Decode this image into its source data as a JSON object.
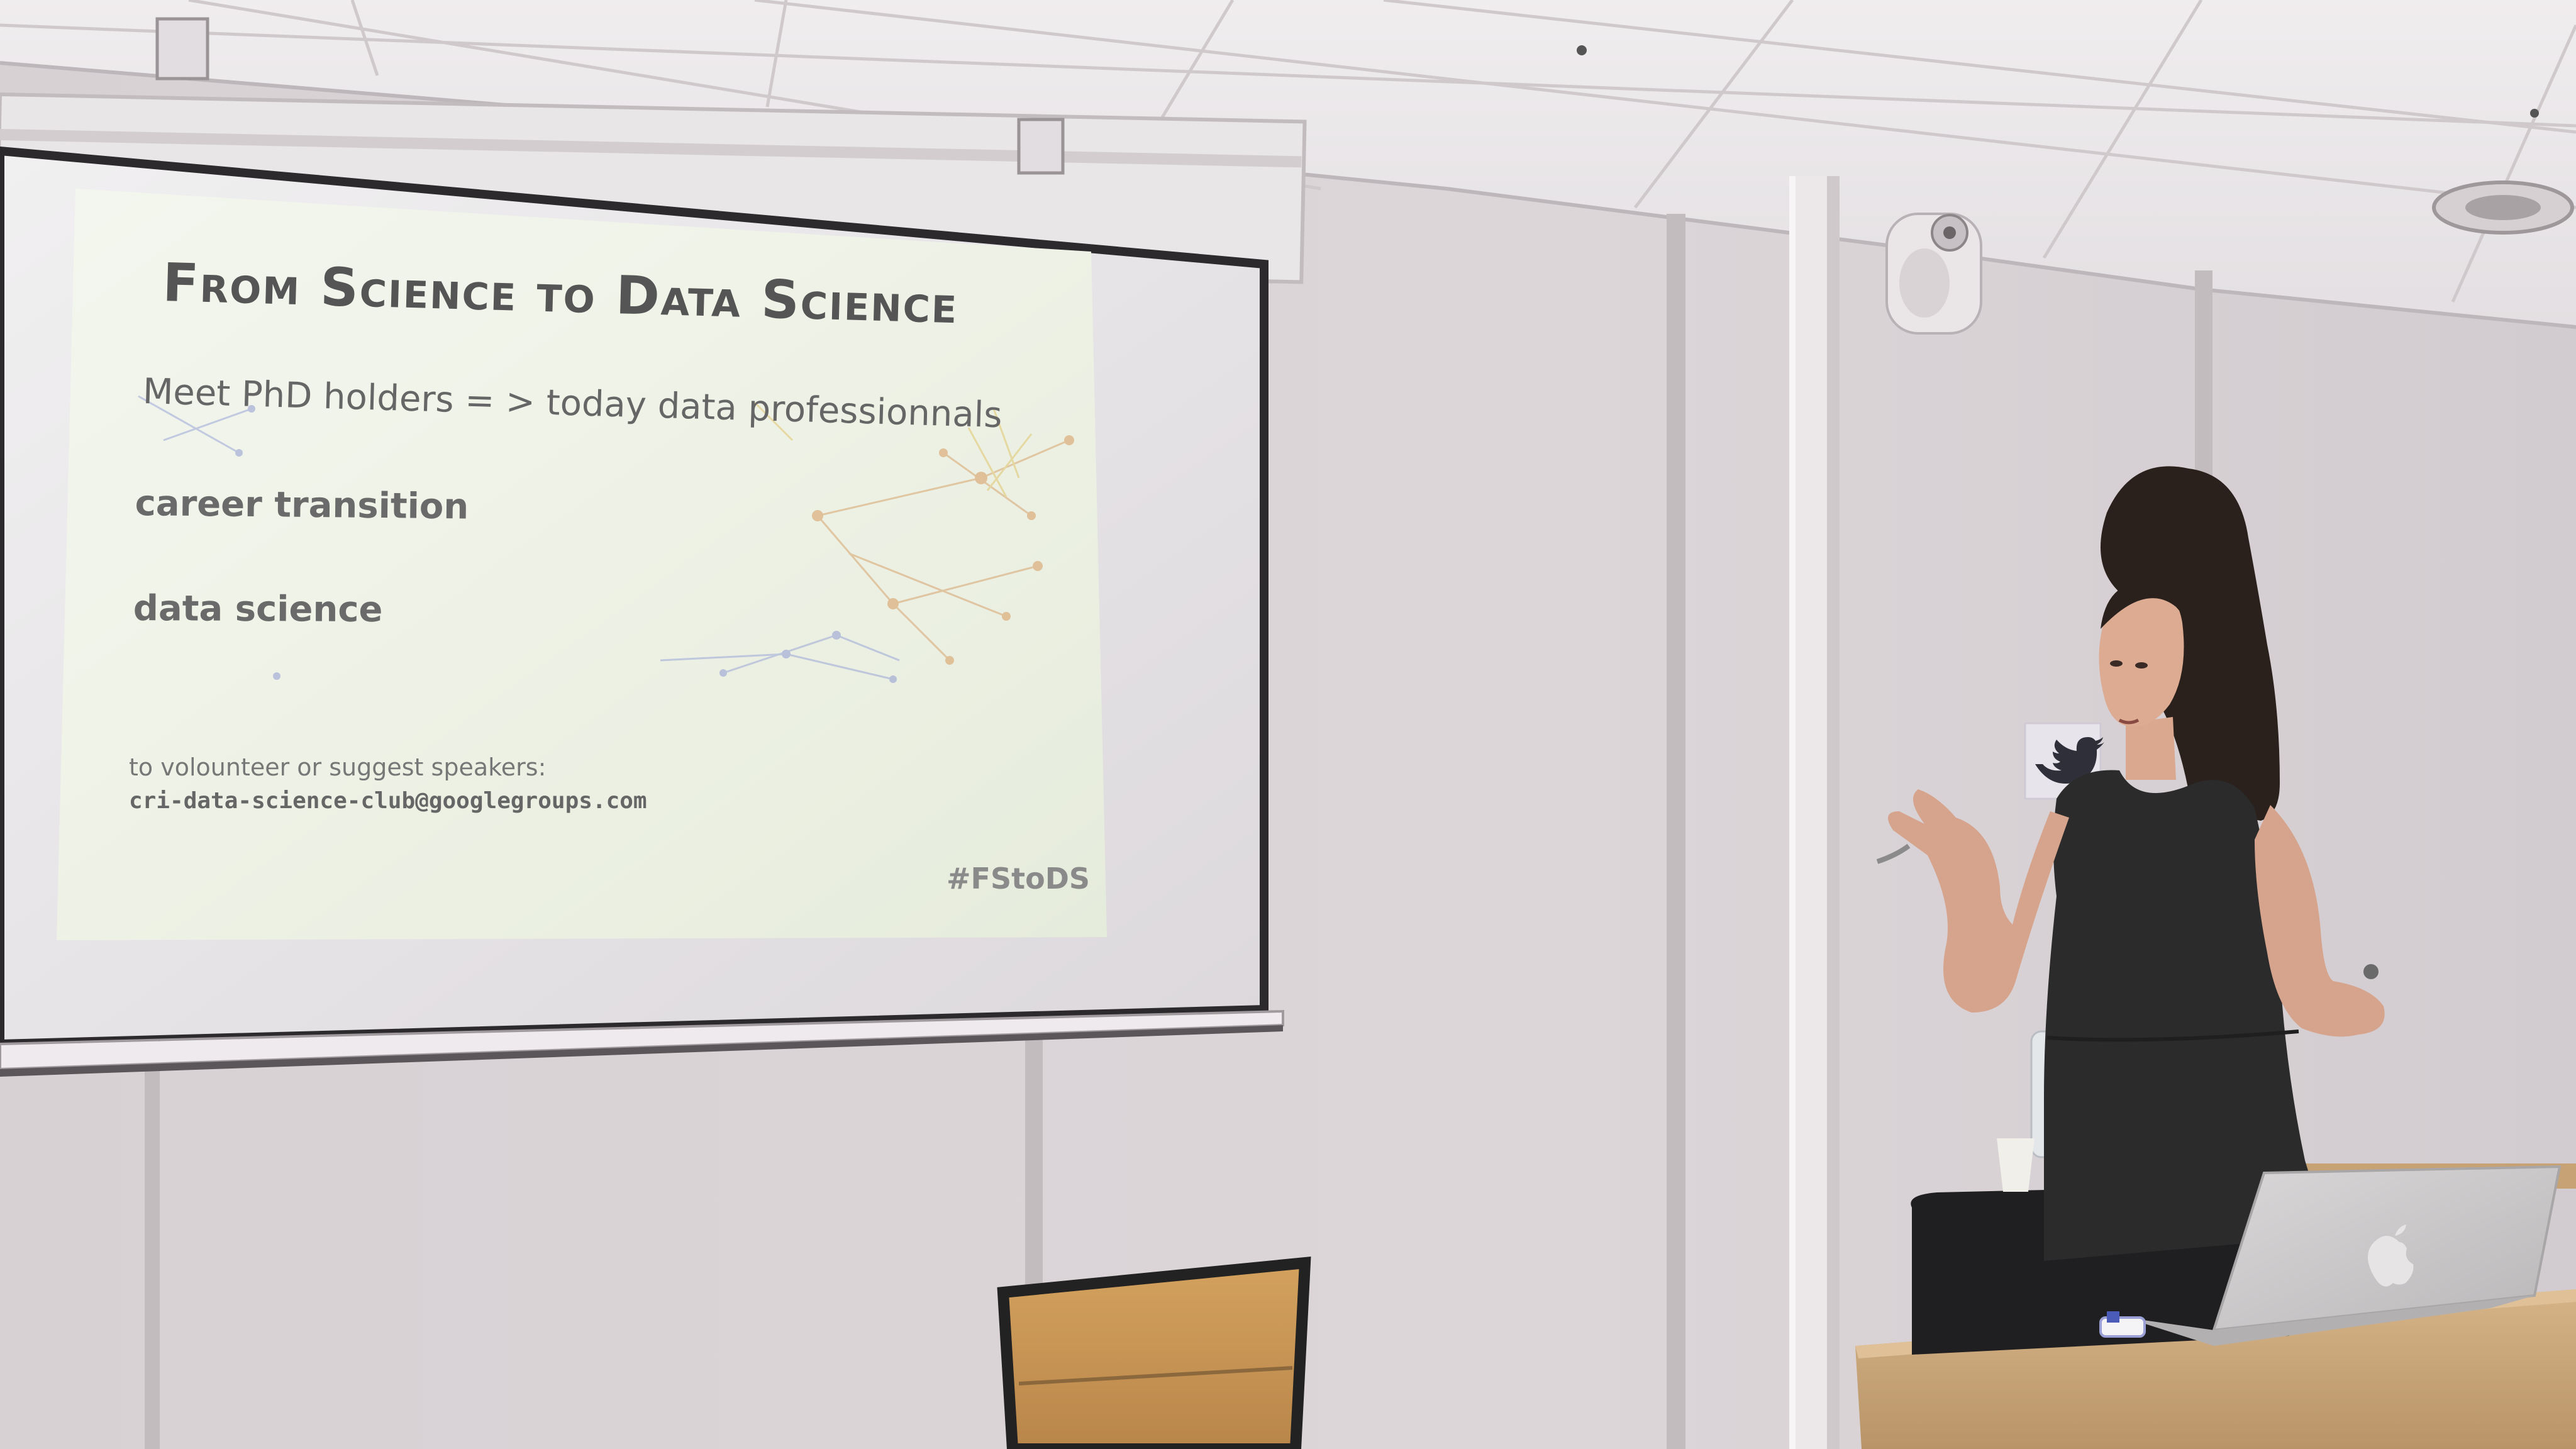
{
  "slide": {
    "title": "From Science to Data Science",
    "line1": "Meet PhD holders  = > today data professionnals",
    "line2": "career transition",
    "line3": "data science",
    "contact_label": "to volounteer or suggest speakers:",
    "contact_email": "cri-data-science-club@googlegroups.com",
    "hashtag": "#FStoDS"
  },
  "colors": {
    "wall": "#d9d3d6",
    "ceiling": "#ebe7ea",
    "slide_bg": "#eef3e6",
    "slide_text": "#666666",
    "dress": "#2b2b2b",
    "hair": "#2a201c",
    "desk": "#caa77c",
    "laptop": "#c9c7c8"
  },
  "icons": [
    "apple-logo-icon",
    "twitter-bird-icon",
    "speaker-icon"
  ]
}
